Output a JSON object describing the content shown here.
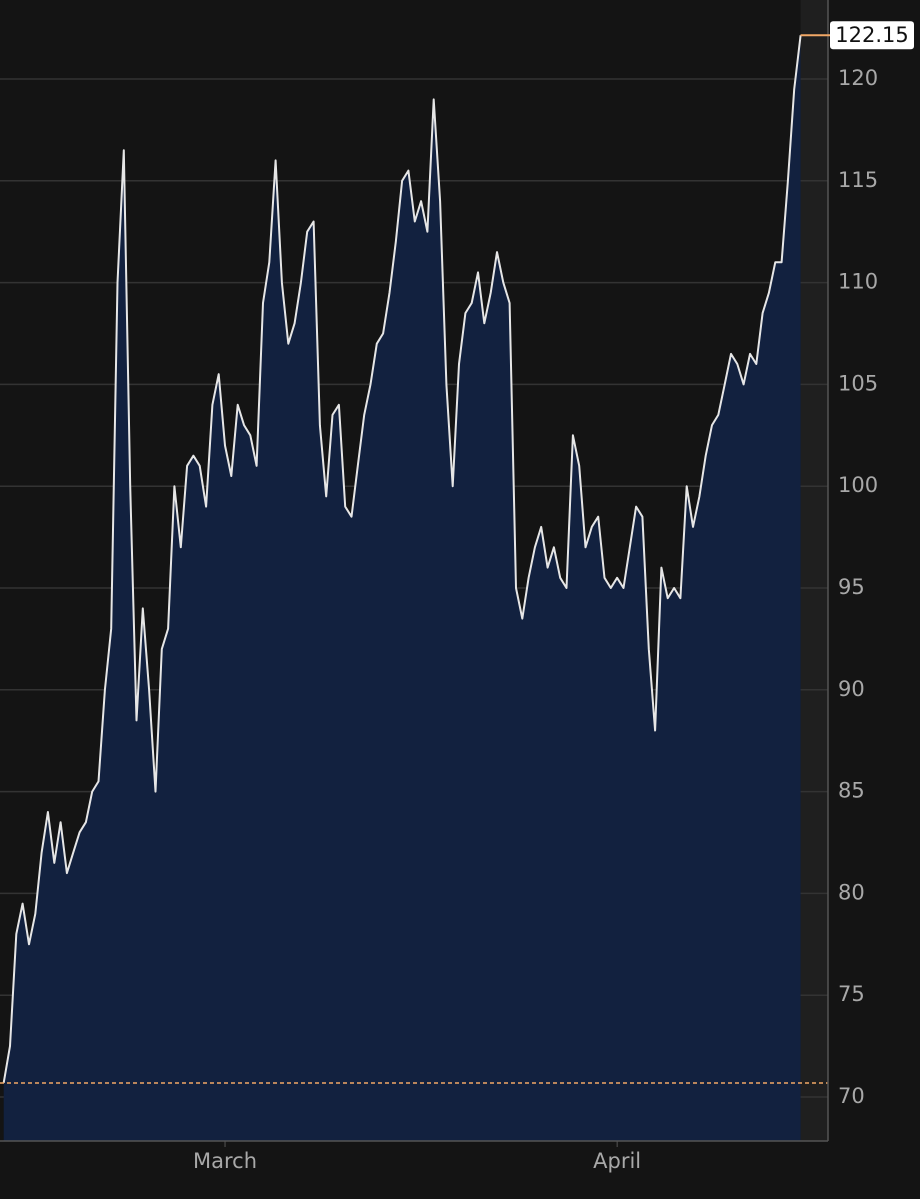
{
  "chart_data": {
    "type": "area",
    "xticks": [
      {
        "value": 0,
        "label": "March"
      },
      {
        "value": 31,
        "label": "April"
      }
    ],
    "xlim": [
      -17.79,
      47.67
    ],
    "ylim": [
      67.84,
      123.88
    ],
    "yticks": [
      70,
      75,
      80,
      85,
      90,
      95,
      100,
      105,
      110,
      115,
      120
    ],
    "grid": true,
    "reference_line": {
      "value": 70.69,
      "color": "#f2a867"
    },
    "series": [
      {
        "color": "#e6e6e6",
        "fill": "#12213f",
        "x": [
          -17.5,
          -17,
          -16.5,
          -16,
          -15.5,
          -15,
          -14.5,
          -14,
          -13.5,
          -13,
          -12.5,
          -12,
          -11.5,
          -11,
          -10.5,
          -10,
          -9.5,
          -9,
          -8.5,
          -8,
          -7.5,
          -7,
          -6.5,
          -6,
          -5.5,
          -5,
          -4.5,
          -4,
          -3.5,
          -3,
          -2.5,
          -2,
          -1.5,
          -1,
          -0.5,
          0,
          0.5,
          1,
          1.5,
          2,
          2.5,
          3,
          3.5,
          4,
          4.5,
          5,
          5.5,
          6,
          6.5,
          7,
          7.5,
          8,
          8.5,
          9,
          9.5,
          10,
          10.5,
          11,
          11.5,
          12,
          12.5,
          13,
          13.5,
          14,
          14.5,
          15,
          15.5,
          16,
          16.5,
          17,
          17.5,
          18,
          18.5,
          19,
          19.5,
          20,
          20.5,
          21,
          21.5,
          22,
          22.5,
          23,
          23.5,
          24,
          24.5,
          25,
          25.5,
          26,
          26.5,
          27,
          27.5,
          28,
          28.5,
          29,
          29.5,
          30,
          30.5,
          31,
          31.5,
          32,
          32.5,
          33,
          33.5,
          34,
          34.5,
          35,
          35.5,
          36,
          36.5,
          37,
          37.5,
          38,
          38.5,
          39,
          39.5,
          40,
          40.5,
          41,
          41.5,
          42,
          42.5,
          43,
          43.5,
          44,
          44.5,
          45,
          45.5
        ],
        "values": [
          70.7,
          72.5,
          78,
          79.5,
          77.5,
          79,
          82,
          84,
          81.5,
          83.5,
          81,
          82,
          83,
          83.5,
          85,
          85.5,
          90,
          93,
          110,
          116.5,
          100,
          88.5,
          94,
          90,
          85,
          92,
          93,
          100,
          97,
          101,
          101.5,
          101,
          99,
          104,
          105.5,
          102,
          100.5,
          104,
          103,
          102.5,
          101,
          109,
          111,
          116,
          110,
          107,
          108,
          110,
          112.5,
          113,
          103,
          99.5,
          103.5,
          104,
          99,
          98.5,
          101,
          103.5,
          105,
          107,
          107.5,
          109.5,
          112,
          115,
          115.5,
          113,
          114,
          112.5,
          119,
          114,
          105,
          100,
          106,
          108.5,
          109,
          110.5,
          108,
          109.5,
          111.5,
          110,
          109,
          95,
          93.5,
          95.5,
          97,
          98,
          96,
          97,
          95.5,
          95,
          102.5,
          101,
          97,
          98,
          98.5,
          95.5,
          95,
          95.5,
          95,
          97,
          99,
          98.5,
          92,
          88,
          96,
          94.5,
          95,
          94.5,
          100,
          98,
          99.5,
          101.5,
          103,
          103.5,
          105,
          106.5,
          106,
          105,
          106.5,
          106,
          108.5,
          109.5,
          111,
          111,
          115,
          119.5,
          122.15
        ]
      }
    ]
  }
}
